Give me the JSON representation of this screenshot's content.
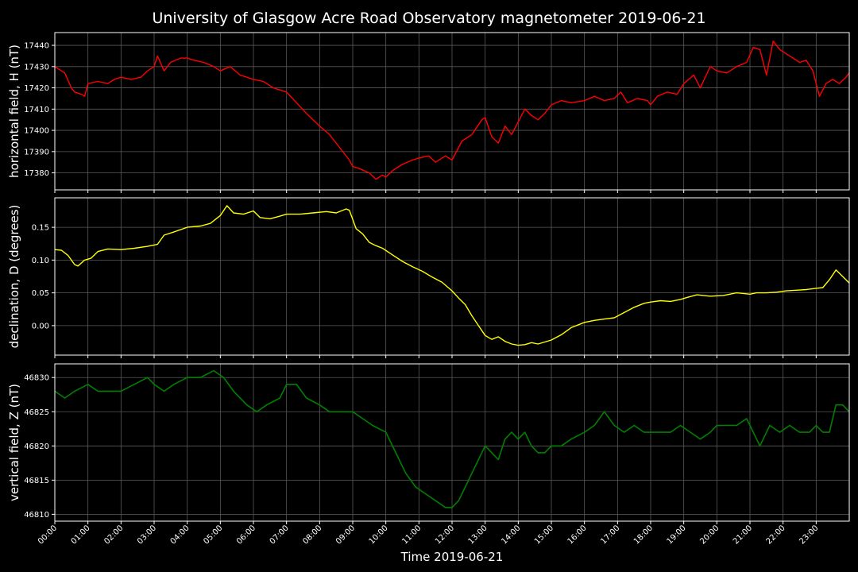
{
  "figure": {
    "title": "University of Glasgow Acre Road Observatory magnetometer 2019-06-21",
    "xlabel": "Time 2019-06-21",
    "background": "#000000"
  },
  "chart_data": [
    {
      "type": "line",
      "ylabel": "horizontal field, H (nT)",
      "color": "#ff0000",
      "xlim": [
        0,
        24
      ],
      "ylim": [
        17372,
        17446
      ],
      "yticks": [
        17380,
        17390,
        17400,
        17410,
        17420,
        17430,
        17440
      ],
      "xticks": [
        "00:00",
        "01:00",
        "02:00",
        "03:00",
        "04:00",
        "05:00",
        "06:00",
        "07:00",
        "08:00",
        "09:00",
        "10:00",
        "11:00",
        "12:00",
        "13:00",
        "14:00",
        "15:00",
        "16:00",
        "17:00",
        "18:00",
        "19:00",
        "20:00",
        "21:00",
        "22:00",
        "23:00"
      ],
      "grid": true,
      "x": [
        0,
        0.3,
        0.5,
        0.6,
        0.8,
        0.9,
        1.0,
        1.3,
        1.6,
        1.8,
        2.0,
        2.3,
        2.6,
        2.8,
        3.0,
        3.1,
        3.3,
        3.5,
        3.8,
        4.0,
        4.2,
        4.5,
        4.8,
        5.0,
        5.3,
        5.6,
        6.0,
        6.3,
        6.6,
        7.0,
        7.3,
        7.6,
        8.0,
        8.3,
        8.6,
        8.9,
        9.0,
        9.2,
        9.5,
        9.7,
        9.9,
        10.0,
        10.2,
        10.5,
        10.8,
        11.0,
        11.3,
        11.5,
        11.8,
        12.0,
        12.3,
        12.6,
        12.9,
        13.0,
        13.2,
        13.4,
        13.6,
        13.8,
        14.0,
        14.2,
        14.4,
        14.6,
        14.8,
        15.0,
        15.3,
        15.6,
        16.0,
        16.3,
        16.6,
        16.9,
        17.1,
        17.3,
        17.6,
        17.9,
        18.0,
        18.2,
        18.5,
        18.8,
        19.0,
        19.3,
        19.5,
        19.8,
        20.0,
        20.3,
        20.6,
        20.9,
        21.1,
        21.3,
        21.5,
        21.7,
        21.9,
        22.1,
        22.3,
        22.5,
        22.7,
        22.9,
        23.1,
        23.3,
        23.5,
        23.7,
        23.9,
        24
      ],
      "y": [
        17430,
        17427,
        17420,
        17418,
        17417,
        17416,
        17422,
        17423,
        17422,
        17424,
        17425,
        17424,
        17425,
        17428,
        17430,
        17435,
        17428,
        17432,
        17434,
        17434,
        17433,
        17432,
        17430,
        17428,
        17430,
        17426,
        17424,
        17423,
        17420,
        17418,
        17413,
        17408,
        17402,
        17398,
        17392,
        17386,
        17383,
        17382,
        17380,
        17377,
        17379,
        17378,
        17381,
        17384,
        17386,
        17387,
        17388,
        17385,
        17388,
        17386,
        17395,
        17398,
        17405,
        17406,
        17397,
        17394,
        17402,
        17398,
        17404,
        17410,
        17407,
        17405,
        17408,
        17412,
        17414,
        17413,
        17414,
        17416,
        17414,
        17415,
        17418,
        17413,
        17415,
        17414,
        17412,
        17416,
        17418,
        17417,
        17422,
        17426,
        17420,
        17430,
        17428,
        17427,
        17430,
        17432,
        17439,
        17438,
        17426,
        17442,
        17438,
        17436,
        17434,
        17432,
        17433,
        17428,
        17416,
        17422,
        17424,
        17422,
        17425,
        17427
      ]
    },
    {
      "type": "line",
      "ylabel": "declination, D (degrees)",
      "color": "#ffff00",
      "xlim": [
        0,
        24
      ],
      "ylim": [
        -0.045,
        0.195
      ],
      "yticks": [
        "0.00",
        "0.05",
        "0.10",
        "0.15"
      ],
      "ytick_values": [
        0,
        0.05,
        0.1,
        0.15
      ],
      "xticks": [
        "00:00",
        "01:00",
        "02:00",
        "03:00",
        "04:00",
        "05:00",
        "06:00",
        "07:00",
        "08:00",
        "09:00",
        "10:00",
        "11:00",
        "12:00",
        "13:00",
        "14:00",
        "15:00",
        "16:00",
        "17:00",
        "18:00",
        "19:00",
        "20:00",
        "21:00",
        "22:00",
        "23:00"
      ],
      "grid": true,
      "x": [
        0,
        0.2,
        0.4,
        0.6,
        0.7,
        0.9,
        1.1,
        1.3,
        1.6,
        2.0,
        2.4,
        2.8,
        3.1,
        3.3,
        3.6,
        4.0,
        4.4,
        4.7,
        5.0,
        5.2,
        5.4,
        5.7,
        6.0,
        6.2,
        6.5,
        6.8,
        7.0,
        7.4,
        7.8,
        8.2,
        8.5,
        8.8,
        8.9,
        9.1,
        9.3,
        9.5,
        9.7,
        9.9,
        10.2,
        10.5,
        10.8,
        11.1,
        11.4,
        11.7,
        12.0,
        12.2,
        12.4,
        12.6,
        12.8,
        13.0,
        13.2,
        13.4,
        13.6,
        13.8,
        14.0,
        14.2,
        14.4,
        14.6,
        14.8,
        15.0,
        15.3,
        15.6,
        16.0,
        16.3,
        16.6,
        16.9,
        17.2,
        17.5,
        17.8,
        18.0,
        18.3,
        18.6,
        18.9,
        19.1,
        19.4,
        19.8,
        20.2,
        20.6,
        21.0,
        21.2,
        21.5,
        21.8,
        22.1,
        22.4,
        22.7,
        23.0,
        23.2,
        23.4,
        23.6,
        23.8,
        24
      ],
      "y": [
        0.116,
        0.115,
        0.107,
        0.093,
        0.091,
        0.1,
        0.103,
        0.113,
        0.117,
        0.116,
        0.118,
        0.121,
        0.124,
        0.138,
        0.143,
        0.15,
        0.152,
        0.156,
        0.168,
        0.183,
        0.172,
        0.17,
        0.175,
        0.165,
        0.163,
        0.167,
        0.17,
        0.17,
        0.172,
        0.174,
        0.172,
        0.178,
        0.176,
        0.148,
        0.14,
        0.127,
        0.122,
        0.118,
        0.108,
        0.098,
        0.09,
        0.083,
        0.074,
        0.066,
        0.053,
        0.042,
        0.032,
        0.015,
        0.0,
        -0.015,
        -0.021,
        -0.017,
        -0.024,
        -0.028,
        -0.03,
        -0.029,
        -0.026,
        -0.028,
        -0.025,
        -0.022,
        -0.014,
        -0.003,
        0.005,
        0.008,
        0.01,
        0.012,
        0.02,
        0.028,
        0.034,
        0.036,
        0.038,
        0.037,
        0.04,
        0.043,
        0.047,
        0.045,
        0.046,
        0.05,
        0.048,
        0.05,
        0.05,
        0.051,
        0.053,
        0.054,
        0.055,
        0.057,
        0.058,
        0.07,
        0.085,
        0.075,
        0.065
      ]
    },
    {
      "type": "line",
      "ylabel": "vertical field, Z (nT)",
      "color": "#008000",
      "xlim": [
        0,
        24
      ],
      "ylim": [
        46809,
        46832
      ],
      "yticks": [
        46810,
        46815,
        46820,
        46825,
        46830
      ],
      "xticks": [
        "00:00",
        "01:00",
        "02:00",
        "03:00",
        "04:00",
        "05:00",
        "06:00",
        "07:00",
        "08:00",
        "09:00",
        "10:00",
        "11:00",
        "12:00",
        "13:00",
        "14:00",
        "15:00",
        "16:00",
        "17:00",
        "18:00",
        "19:00",
        "20:00",
        "21:00",
        "22:00",
        "23:00"
      ],
      "grid": true,
      "x": [
        0,
        0.3,
        0.6,
        1.0,
        1.3,
        1.6,
        2.0,
        2.4,
        2.8,
        3.0,
        3.3,
        3.6,
        4.0,
        4.4,
        4.8,
        5.1,
        5.4,
        5.8,
        6.1,
        6.4,
        6.8,
        7.0,
        7.3,
        7.6,
        8.0,
        8.3,
        8.6,
        9.0,
        9.3,
        9.6,
        10.0,
        10.3,
        10.6,
        10.9,
        11.2,
        11.5,
        11.8,
        12.0,
        12.2,
        12.4,
        12.6,
        12.8,
        13.0,
        13.2,
        13.4,
        13.6,
        13.8,
        14.0,
        14.2,
        14.4,
        14.6,
        14.8,
        15.0,
        15.3,
        15.6,
        16.0,
        16.3,
        16.6,
        16.9,
        17.2,
        17.5,
        17.8,
        18.0,
        18.3,
        18.6,
        18.9,
        19.2,
        19.5,
        19.8,
        20.0,
        20.3,
        20.6,
        20.9,
        21.1,
        21.3,
        21.6,
        21.9,
        22.2,
        22.5,
        22.8,
        23.0,
        23.2,
        23.4,
        23.6,
        23.8,
        24
      ],
      "y": [
        46828,
        46827,
        46828,
        46829,
        46828,
        46828,
        46828,
        46829,
        46830,
        46829,
        46828,
        46829,
        46830,
        46830,
        46831,
        46830,
        46828,
        46826,
        46825,
        46826,
        46827,
        46829,
        46829,
        46827,
        46826,
        46825,
        46825,
        46825,
        46824,
        46823,
        46822,
        46819,
        46816,
        46814,
        46813,
        46812,
        46811,
        46811,
        46812,
        46814,
        46816,
        46818,
        46820,
        46819,
        46818,
        46821,
        46822,
        46821,
        46822,
        46820,
        46819,
        46819,
        46820,
        46820,
        46821,
        46822,
        46823,
        46825,
        46823,
        46822,
        46823,
        46822,
        46822,
        46822,
        46822,
        46823,
        46822,
        46821,
        46822,
        46823,
        46823,
        46823,
        46824,
        46822,
        46820,
        46823,
        46822,
        46823,
        46822,
        46822,
        46823,
        46822,
        46822,
        46826,
        46826,
        46825
      ]
    }
  ]
}
